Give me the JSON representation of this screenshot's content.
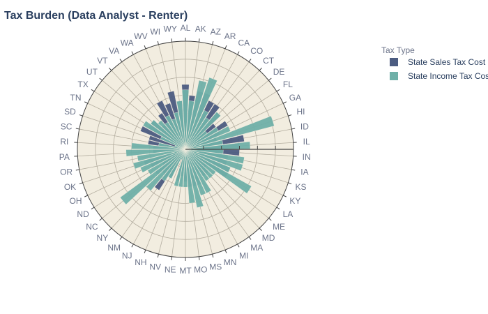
{
  "chart_data": {
    "type": "bar",
    "polar": true,
    "title": "Tax Burden (Data Analyst - Renter)",
    "categories": [
      "AL",
      "AK",
      "AZ",
      "AR",
      "CA",
      "CO",
      "CT",
      "DE",
      "FL",
      "GA",
      "HI",
      "ID",
      "IL",
      "IN",
      "IA",
      "KS",
      "KY",
      "LA",
      "ME",
      "MD",
      "MA",
      "MI",
      "MN",
      "MS",
      "MO",
      "MT",
      "NE",
      "NV",
      "NH",
      "NJ",
      "NM",
      "NY",
      "NC",
      "ND",
      "OH",
      "OK",
      "OR",
      "PA",
      "RI",
      "SC",
      "SD",
      "TN",
      "TX",
      "UT",
      "VT",
      "VA",
      "WA",
      "WV",
      "WI",
      "WY"
    ],
    "series": [
      {
        "name": "State Sales Tax Cost",
        "color": "#4c5c81",
        "values": [
          0.6,
          0.5,
          0.55,
          0.55,
          0.5,
          0.5,
          0.45,
          0.35,
          0.45,
          0.35,
          0.3,
          0.55,
          0.5,
          0.5,
          0.4,
          0.4,
          0.45,
          0.45,
          0.25,
          0.3,
          0.3,
          0.25,
          0.35,
          0.35,
          0.35,
          0.3,
          0.25,
          0.3,
          0.1,
          0.3,
          0.45,
          0.3,
          0.35,
          0.25,
          0.35,
          0.4,
          0.1,
          0.3,
          0.3,
          0.35,
          0.35,
          0.45,
          0.4,
          0.4,
          0.3,
          0.4,
          0.5,
          0.45,
          0.55,
          0.45
        ]
      },
      {
        "name": "State Income Tax Cost",
        "color": "#6fb0a8",
        "values": [
          0.55,
          0.45,
          0.65,
          0.7,
          0.4,
          0.35,
          0.45,
          0.25,
          0.35,
          0.45,
          0.85,
          0.35,
          0.6,
          0.35,
          0.55,
          0.55,
          0.45,
          0.7,
          0.35,
          0.35,
          0.35,
          0.45,
          0.45,
          0.55,
          0.5,
          0.35,
          0.35,
          0.35,
          0.1,
          0.3,
          0.35,
          0.5,
          0.75,
          0.4,
          0.45,
          0.5,
          0.45,
          0.55,
          0.5,
          0.25,
          0.1,
          0.25,
          0.45,
          0.4,
          0.35,
          0.3,
          0.35,
          0.3,
          0.35,
          0.45
        ]
      }
    ],
    "radial_range": [
      0,
      1
    ],
    "grid": true,
    "legend": {
      "title": "Tax Type",
      "placement": "top-right"
    }
  }
}
